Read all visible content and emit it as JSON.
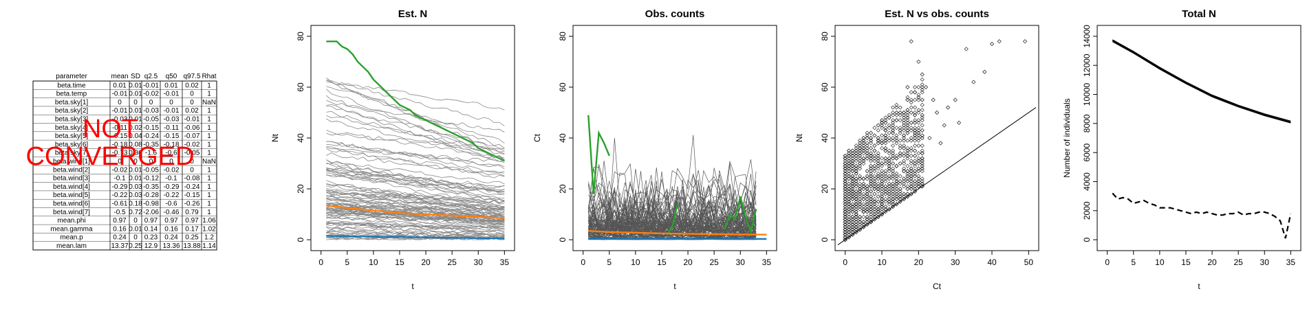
{
  "summary_table": {
    "columns": [
      "parameter",
      "mean",
      "SD",
      "q2.5",
      "q50",
      "q97.5",
      "Rhat"
    ],
    "rows": [
      [
        "beta.time",
        "0.01",
        "0.01",
        "-0.01",
        "0.01",
        "0.02",
        "1"
      ],
      [
        "beta.temp",
        "-0.01",
        "0.01",
        "-0.02",
        "-0.01",
        "0",
        "1"
      ],
      [
        "beta.sky[1]",
        "0",
        "0",
        "0",
        "0",
        "0",
        "NaN"
      ],
      [
        "beta.sky[2]",
        "-0.01",
        "0.01",
        "-0.03",
        "-0.01",
        "0.02",
        "1"
      ],
      [
        "beta.sky[3]",
        "-0.03",
        "0.01",
        "-0.05",
        "-0.03",
        "-0.01",
        "1"
      ],
      [
        "beta.sky[4]",
        "-0.11",
        "0.02",
        "-0.15",
        "-0.11",
        "-0.06",
        "1"
      ],
      [
        "beta.sky[5]",
        "-0.15",
        "0.04",
        "-0.24",
        "-0.15",
        "-0.07",
        "1"
      ],
      [
        "beta.sky[6]",
        "-0.18",
        "0.08",
        "-0.35",
        "-0.18",
        "-0.02",
        "1"
      ],
      [
        "beta.sky[7]",
        "-0.73",
        "0.36",
        "-1.6",
        "-0.6",
        "-0.05",
        "1"
      ],
      [
        "beta.wind[1]",
        "0",
        "0",
        "0",
        "0",
        "0",
        "NaN"
      ],
      [
        "beta.wind[2]",
        "-0.02",
        "0.01",
        "-0.05",
        "-0.02",
        "0",
        "1"
      ],
      [
        "beta.wind[3]",
        "-0.1",
        "0.01",
        "-0.12",
        "-0.1",
        "-0.08",
        "1"
      ],
      [
        "beta.wind[4]",
        "-0.29",
        "0.03",
        "-0.35",
        "-0.29",
        "-0.24",
        "1"
      ],
      [
        "beta.wind[5]",
        "-0.22",
        "0.03",
        "-0.28",
        "-0.22",
        "-0.15",
        "1"
      ],
      [
        "beta.wind[6]",
        "-0.61",
        "0.18",
        "-0.98",
        "-0.6",
        "-0.26",
        "1"
      ],
      [
        "beta.wind[7]",
        "-0.5",
        "0.72",
        "-2.06",
        "-0.46",
        "0.79",
        "1"
      ],
      [
        "mean.phi",
        "0.97",
        "0",
        "0.97",
        "0.97",
        "0.97",
        "1.06"
      ],
      [
        "mean.gamma",
        "0.16",
        "0.01",
        "0.14",
        "0.16",
        "0.17",
        "1.02"
      ],
      [
        "mean.p",
        "0.24",
        "0",
        "0.23",
        "0.24",
        "0.25",
        "1.2"
      ],
      [
        "mean.lam",
        "13.37",
        "0.25",
        "12.9",
        "13.36",
        "13.88",
        "1.14"
      ]
    ],
    "stamp_lines": [
      "NOT",
      "CONVERGED"
    ],
    "stamp_color": "#ff0000"
  },
  "chart_data": [
    {
      "type": "line",
      "title": "Est. N",
      "xlabel": "t",
      "ylabel": "Nt",
      "xlim": [
        0,
        35
      ],
      "ylim": [
        0,
        80
      ],
      "xticks": [
        0,
        5,
        10,
        15,
        20,
        25,
        30,
        35
      ],
      "yticks": [
        0,
        20,
        40,
        60,
        80
      ],
      "background_line_color": "#888888",
      "highlights": [
        {
          "color": "#2aa02a",
          "x": [
            1,
            2,
            3,
            4,
            5,
            6,
            7,
            8,
            9,
            10,
            11,
            12,
            13,
            14,
            15,
            16,
            17,
            18,
            19,
            20,
            21,
            22,
            23,
            24,
            25,
            26,
            27,
            28,
            29,
            30,
            31,
            32,
            33,
            34,
            35
          ],
          "y": [
            78,
            78,
            78,
            76,
            75,
            73,
            70,
            68,
            66,
            63,
            61,
            59,
            57,
            55,
            53,
            52,
            51,
            49,
            48,
            47,
            46,
            45,
            44,
            43,
            42,
            41,
            40,
            39,
            38,
            36,
            35,
            34,
            33,
            32,
            31
          ]
        },
        {
          "color": "#ff7f0e",
          "x": [
            1,
            5,
            10,
            15,
            20,
            25,
            30,
            35
          ],
          "y": [
            13.5,
            12.5,
            11.5,
            10.5,
            10,
            9.5,
            9,
            8.5
          ]
        },
        {
          "color": "#1f77b4",
          "x": [
            1,
            35
          ],
          "y": [
            1.5,
            0.5
          ]
        }
      ]
    },
    {
      "type": "line",
      "title": "Obs. counts",
      "xlabel": "t",
      "ylabel": "Ct",
      "xlim": [
        0,
        35
      ],
      "ylim": [
        0,
        80
      ],
      "xticks": [
        0,
        5,
        10,
        15,
        20,
        25,
        30,
        35
      ],
      "yticks": [
        0,
        20,
        40,
        60,
        80
      ],
      "background_line_color": "#555555",
      "highlights": [
        {
          "color": "#2aa02a",
          "x": [
            1,
            2,
            3,
            4,
            5
          ],
          "y": [
            49,
            18,
            42,
            38,
            33
          ]
        },
        {
          "color": "#2aa02a",
          "x": [
            16,
            17,
            18
          ],
          "y": [
            2,
            5,
            14
          ]
        },
        {
          "color": "#2aa02a",
          "x": [
            27,
            28,
            29,
            30,
            31,
            32,
            33
          ],
          "y": [
            4,
            10,
            8,
            17,
            9,
            3,
            12
          ]
        },
        {
          "color": "#ff7f0e",
          "x": [
            1,
            5,
            10,
            15,
            20,
            25,
            30,
            35
          ],
          "y": [
            3.5,
            3,
            2.8,
            2.5,
            2.3,
            2.2,
            2.1,
            2
          ]
        },
        {
          "color": "#1f77b4",
          "x": [
            1,
            35
          ],
          "y": [
            0.5,
            0.3
          ]
        }
      ]
    },
    {
      "type": "scatter",
      "title": "Est. N vs obs. counts",
      "xlabel": "Ct",
      "ylabel": "Nt",
      "xlim": [
        0,
        50
      ],
      "ylim": [
        0,
        80
      ],
      "xticks": [
        0,
        10,
        20,
        30,
        40,
        50
      ],
      "yticks": [
        0,
        20,
        40,
        60,
        80
      ],
      "reference_line": "y = x",
      "outliers": [
        {
          "x": 49,
          "y": 78
        },
        {
          "x": 42,
          "y": 78
        },
        {
          "x": 40,
          "y": 77
        },
        {
          "x": 38,
          "y": 66
        },
        {
          "x": 33,
          "y": 75
        },
        {
          "x": 35,
          "y": 62
        },
        {
          "x": 30,
          "y": 55
        },
        {
          "x": 28,
          "y": 52
        },
        {
          "x": 27,
          "y": 45
        },
        {
          "x": 25,
          "y": 50
        },
        {
          "x": 24,
          "y": 55
        },
        {
          "x": 22,
          "y": 60
        },
        {
          "x": 21,
          "y": 65
        },
        {
          "x": 20,
          "y": 70
        },
        {
          "x": 18,
          "y": 78
        },
        {
          "x": 17,
          "y": 60
        },
        {
          "x": 16,
          "y": 50
        },
        {
          "x": 23,
          "y": 40
        },
        {
          "x": 26,
          "y": 38
        },
        {
          "x": 31,
          "y": 46
        }
      ]
    },
    {
      "type": "line",
      "title": "Total N",
      "xlabel": "t",
      "ylabel": "Number of individuals",
      "xlim": [
        0,
        35
      ],
      "ylim": [
        0,
        14000
      ],
      "xticks": [
        0,
        5,
        10,
        15,
        20,
        25,
        30,
        35
      ],
      "yticks": [
        0,
        2000,
        4000,
        6000,
        8000,
        10000,
        12000,
        14000
      ],
      "series": [
        {
          "style": "solid",
          "x": [
            1,
            5,
            10,
            15,
            20,
            25,
            30,
            35
          ],
          "y": [
            13700,
            12900,
            11800,
            10800,
            9900,
            9200,
            8600,
            8100
          ]
        },
        {
          "style": "dashed",
          "x": [
            1,
            2,
            3,
            4,
            5,
            6,
            7,
            8,
            9,
            10,
            11,
            12,
            13,
            14,
            15,
            16,
            17,
            18,
            19,
            20,
            21,
            22,
            23,
            24,
            25,
            26,
            27,
            28,
            29,
            30,
            31,
            32,
            33,
            34,
            35
          ],
          "y": [
            3200,
            2800,
            2900,
            2800,
            2500,
            2600,
            2700,
            2500,
            2400,
            2200,
            2200,
            2200,
            2100,
            2000,
            1900,
            1800,
            1900,
            1800,
            1900,
            1800,
            1700,
            1700,
            1800,
            1800,
            1900,
            1700,
            1800,
            1800,
            1900,
            1900,
            1800,
            1600,
            1300,
            100,
            1800
          ]
        }
      ]
    }
  ]
}
